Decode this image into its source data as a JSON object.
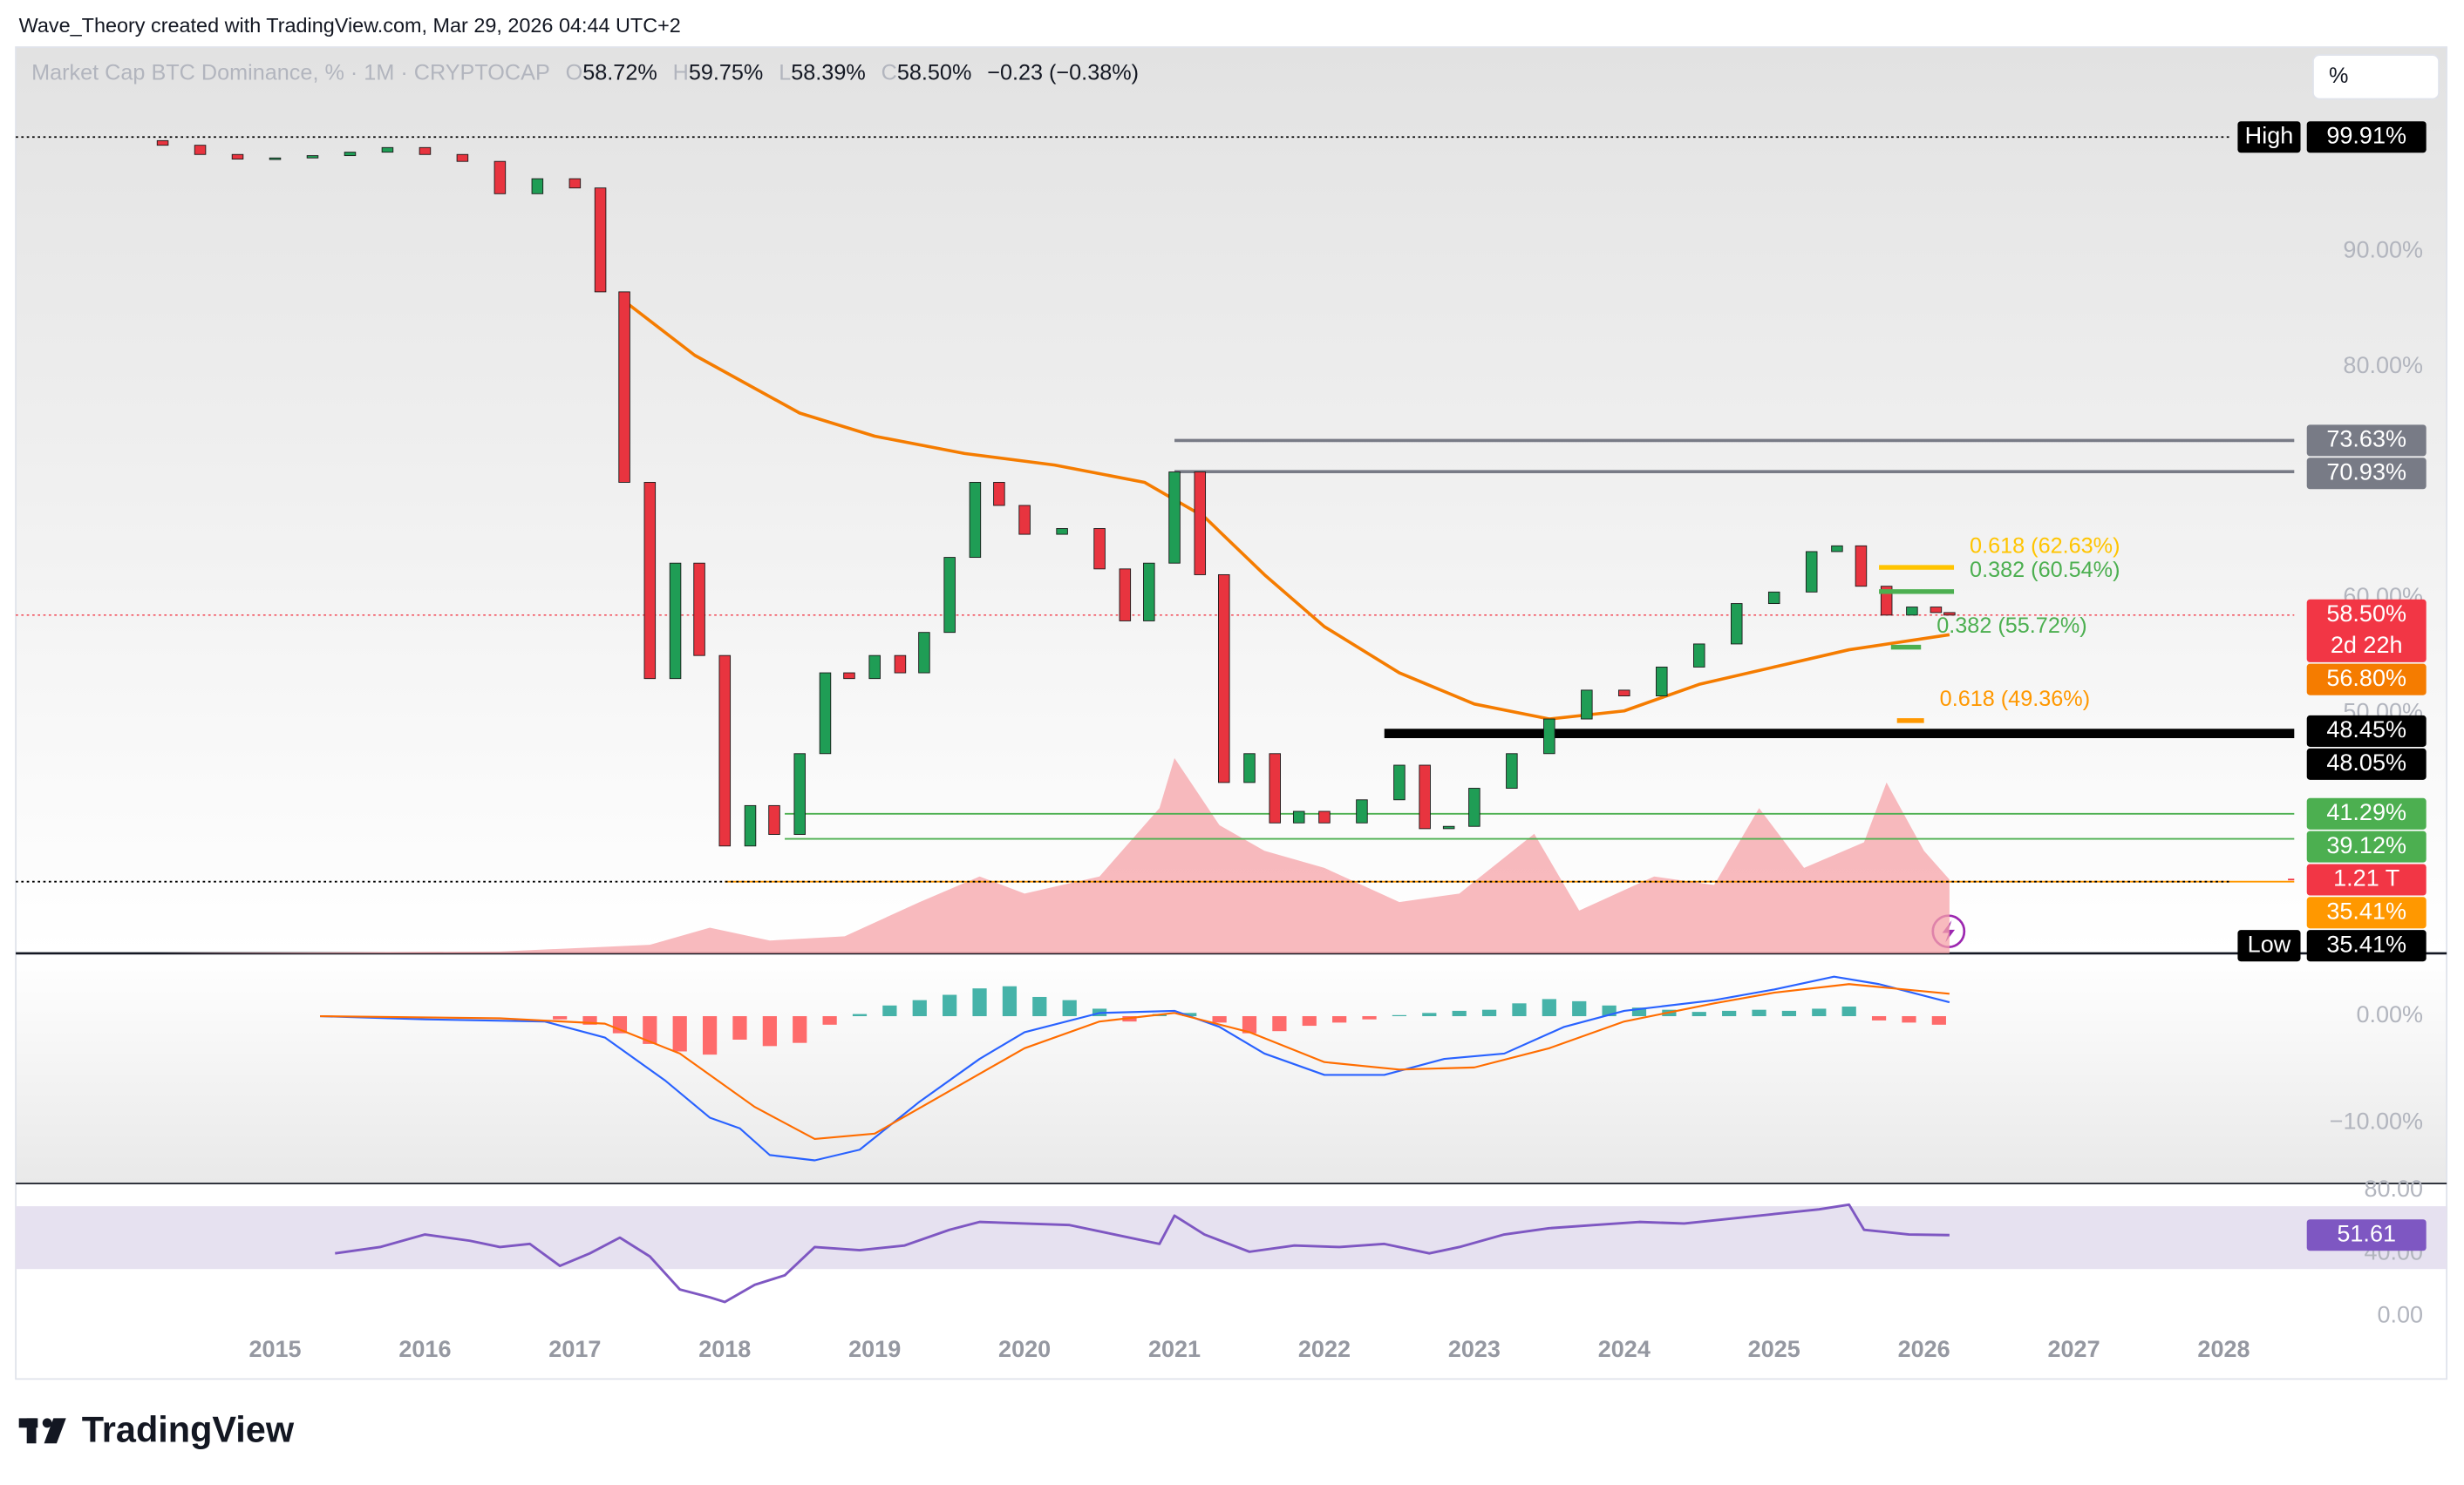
{
  "header": {
    "attribution": "Wave_Theory created with TradingView.com, Mar 29, 2026 04:44 UTC+2",
    "symbol": "Market Cap BTC Dominance, % · 1M · CRYPTOCAP",
    "ohlc": [
      {
        "key": "O",
        "value": "58.72%"
      },
      {
        "key": "H",
        "value": "59.75%"
      },
      {
        "key": "L",
        "value": "58.39%"
      },
      {
        "key": "C",
        "value": "58.50%"
      }
    ],
    "change": "−0.23 (−0.38%)",
    "unit": "%"
  },
  "footer": {
    "logo": "TradingView"
  },
  "chart_data": [
    {
      "type": "candlestick",
      "xlim": [
        2013.27,
        2028.47
      ],
      "xticks": [
        2015,
        2016,
        2017,
        2018,
        2019,
        2020,
        2021,
        2022,
        2023,
        2024,
        2025,
        2026,
        2027,
        2028
      ],
      "ylim": [
        29.2,
        107.7
      ],
      "yticks": [
        {
          "value": 50,
          "label": "50.00%"
        },
        {
          "value": 60,
          "label": "60.00%"
        },
        {
          "value": 70,
          "label": "70.00%"
        },
        {
          "value": 80,
          "label": "80.00%"
        },
        {
          "value": 90,
          "label": "90.00%"
        }
      ],
      "up_color": "#1f9d55",
      "down_color": "#e8343f",
      "x": [
        2014.25,
        2014.5,
        2014.75,
        2015.0,
        2015.25,
        2015.5,
        2015.75,
        2016.0,
        2016.25,
        2016.5,
        2016.75,
        2017.0,
        2017.17,
        2017.33,
        2017.5,
        2017.67,
        2017.83,
        2018.0,
        2018.17,
        2018.33,
        2018.5,
        2018.67,
        2018.83,
        2019.0,
        2019.17,
        2019.33,
        2019.5,
        2019.67,
        2019.83,
        2020.0,
        2020.25,
        2020.5,
        2020.67,
        2020.83,
        2021.0,
        2021.17,
        2021.33,
        2021.5,
        2021.67,
        2021.83,
        2022.0,
        2022.25,
        2022.5,
        2022.67,
        2022.83,
        2023.0,
        2023.25,
        2023.5,
        2023.75,
        2024.0,
        2024.25,
        2024.5,
        2024.75,
        2025.0,
        2025.25,
        2025.42,
        2025.58,
        2025.75,
        2025.92,
        2026.08,
        2026.17
      ],
      "open": [
        99.6,
        99.2,
        98.4,
        98.0,
        98.1,
        98.3,
        98.6,
        99.0,
        98.4,
        97.8,
        95.0,
        96.3,
        95.5,
        86.5,
        70.0,
        53.0,
        63.0,
        55.0,
        38.5,
        42.0,
        39.5,
        46.5,
        53.5,
        53.0,
        55.0,
        53.5,
        57.0,
        63.5,
        70.0,
        68.0,
        65.5,
        66.0,
        62.5,
        58.0,
        63.0,
        70.9,
        62.0,
        44.0,
        46.5,
        40.5,
        41.5,
        40.5,
        42.5,
        45.5,
        40.0,
        40.2,
        43.5,
        46.5,
        49.5,
        52.0,
        51.5,
        54.0,
        56.0,
        59.5,
        60.5,
        64.0,
        64.5,
        61.0,
        58.5,
        59.2,
        58.72
      ],
      "high": {
        "value": 99.91,
        "label": "99.91%",
        "tag": "High",
        "color": "#000000"
      },
      "low": {
        "value": 35.41,
        "label": "35.41%",
        "tag": "Low",
        "color": "#000000"
      },
      "close": [
        99.2,
        98.4,
        98.0,
        98.1,
        98.3,
        98.6,
        99.0,
        98.4,
        97.8,
        95.0,
        96.3,
        95.5,
        86.5,
        70.0,
        53.0,
        63.0,
        55.0,
        38.5,
        42.0,
        39.5,
        46.5,
        53.5,
        53.0,
        55.0,
        53.5,
        57.0,
        63.5,
        70.0,
        68.0,
        65.5,
        66.0,
        62.5,
        58.0,
        63.0,
        70.9,
        62.0,
        44.0,
        46.5,
        40.5,
        41.5,
        40.5,
        42.5,
        45.5,
        40.0,
        40.2,
        43.5,
        46.5,
        49.5,
        52.0,
        51.5,
        54.0,
        56.0,
        59.5,
        60.5,
        64.0,
        64.5,
        61.0,
        58.5,
        59.2,
        58.72,
        58.5
      ],
      "series": [
        {
          "type": "line",
          "color": "#f57c00",
          "x": [
            2017.3,
            2017.8,
            2018.5,
            2019.0,
            2019.6,
            2020.2,
            2020.8,
            2021.2,
            2021.6,
            2022.0,
            2022.5,
            2023.0,
            2023.5,
            2024.0,
            2024.5,
            2025.0,
            2025.5,
            2026.17
          ],
          "values": [
            86,
            81,
            76,
            74,
            72.5,
            71.5,
            70,
            67,
            62,
            57.5,
            53.5,
            50.8,
            49.5,
            50.2,
            52.5,
            54,
            55.5,
            56.8
          ],
          "current": {
            "value": 56.8,
            "label": "56.80%",
            "color": "#f57c00"
          }
        }
      ],
      "volume": {
        "type": "area",
        "color": "#f5a3a8",
        "ylim": [
          0,
          14.85
        ],
        "x": [
          2014.2,
          2016.5,
          2017.5,
          2017.9,
          2018.3,
          2018.8,
          2019.3,
          2019.7,
          2020.0,
          2020.5,
          2020.9,
          2021.0,
          2021.3,
          2021.6,
          2022.0,
          2022.5,
          2022.9,
          2023.4,
          2023.7,
          2024.2,
          2024.6,
          2024.9,
          2025.2,
          2025.6,
          2025.75,
          2026.0,
          2026.17
        ],
        "values": [
          0,
          0.03,
          0.14,
          0.42,
          0.21,
          0.28,
          0.84,
          1.26,
          0.98,
          1.26,
          2.38,
          3.2,
          2.1,
          1.68,
          1.4,
          0.84,
          0.98,
          1.96,
          0.7,
          1.26,
          1.12,
          2.38,
          1.4,
          1.82,
          2.8,
          1.68,
          1.21
        ],
        "current": {
          "value": 1.21,
          "label": "1.21 T",
          "color": "#f23645"
        }
      },
      "levels": [
        {
          "value": 73.63,
          "label": "73.63%",
          "color": "#787b86",
          "from": 2021.0,
          "line_width": 2
        },
        {
          "value": 70.93,
          "label": "70.93%",
          "color": "#787b86",
          "from": 2021.0,
          "line_width": 2
        },
        {
          "value": 48.45,
          "label": "48.45%",
          "color": "#000000",
          "from": 2022.4,
          "line_width": 3
        },
        {
          "value": 48.05,
          "label": "48.05%",
          "color": "#000000",
          "from": 2022.4,
          "line_width": 3
        },
        {
          "value": 41.29,
          "label": "41.29%",
          "color": "#4caf50",
          "from": 2018.4,
          "line_width": 1
        },
        {
          "value": 39.12,
          "label": "39.12%",
          "color": "#4caf50",
          "from": 2018.4,
          "line_width": 1
        },
        {
          "value": 35.41,
          "label": "35.41%",
          "color": "#ff9800",
          "from": 2018.0,
          "line_width": 1
        }
      ],
      "fibs": [
        {
          "value": 62.63,
          "label": "0.618 (62.63%)",
          "color": "#ffc400",
          "from": 2025.7,
          "to": 2026.2
        },
        {
          "value": 60.54,
          "label": "0.382 (60.54%)",
          "color": "#4caf50",
          "from": 2025.7,
          "to": 2026.2
        },
        {
          "value": 55.72,
          "label": "0.382 (55.72%)",
          "color": "#4caf50",
          "from": 2025.78,
          "to": 2025.98
        },
        {
          "value": 49.36,
          "label": "0.618 (49.36%)",
          "color": "#ff9800",
          "from": 2025.82,
          "to": 2026.0
        }
      ],
      "last": {
        "value": 58.5,
        "label": "58.50%",
        "countdown": "2d 22h",
        "color": "#f23645"
      }
    },
    {
      "type": "macd",
      "xlim": [
        2013.27,
        2028.47
      ],
      "ylim": [
        -15.44,
        5.44
      ],
      "yticks": [
        {
          "value": -10,
          "label": "−10.00%"
        },
        {
          "value": 0,
          "label": "0.00%"
        }
      ],
      "series": [
        {
          "type": "histogram",
          "colors": {
            "up": "#26a69a",
            "down": "#ff5252"
          },
          "x": [
            2016.9,
            2017.1,
            2017.3,
            2017.5,
            2017.7,
            2017.9,
            2018.1,
            2018.3,
            2018.5,
            2018.7,
            2018.9,
            2019.1,
            2019.3,
            2019.5,
            2019.7,
            2019.9,
            2020.1,
            2020.3,
            2020.5,
            2020.7,
            2020.9,
            2021.1,
            2021.3,
            2021.5,
            2021.7,
            2021.9,
            2022.1,
            2022.3,
            2022.5,
            2022.7,
            2022.9,
            2023.1,
            2023.3,
            2023.5,
            2023.7,
            2023.9,
            2024.1,
            2024.3,
            2024.5,
            2024.7,
            2024.9,
            2025.1,
            2025.3,
            2025.5,
            2025.7,
            2025.9,
            2026.1
          ],
          "values": [
            -0.3,
            -0.8,
            -1.6,
            -2.6,
            -3.3,
            -3.6,
            -2.2,
            -2.8,
            -2.5,
            -0.8,
            0.2,
            1.0,
            1.5,
            2.0,
            2.6,
            2.8,
            1.8,
            1.5,
            0.7,
            -0.5,
            0.2,
            0.3,
            -0.6,
            -1.6,
            -1.4,
            -0.9,
            -0.6,
            -0.3,
            0.1,
            0.3,
            0.5,
            0.6,
            1.2,
            1.6,
            1.4,
            1.0,
            0.8,
            0.6,
            0.4,
            0.5,
            0.6,
            0.5,
            0.7,
            0.9,
            -0.4,
            -0.6,
            -0.8
          ]
        },
        {
          "type": "line",
          "color": "#2962ff",
          "x": [
            2015.3,
            2016.0,
            2016.8,
            2017.2,
            2017.6,
            2017.9,
            2018.1,
            2018.3,
            2018.6,
            2018.9,
            2019.3,
            2019.7,
            2020.0,
            2020.5,
            2021.0,
            2021.3,
            2021.6,
            2022.0,
            2022.4,
            2022.8,
            2023.2,
            2023.6,
            2024.0,
            2024.6,
            2025.0,
            2025.4,
            2025.7,
            2026.17
          ],
          "values": [
            0,
            -0.3,
            -0.5,
            -2,
            -6,
            -9.5,
            -10.5,
            -13,
            -13.5,
            -12.5,
            -8,
            -4,
            -1.5,
            0.3,
            0.5,
            -1,
            -3.5,
            -5.5,
            -5.5,
            -4,
            -3.5,
            -1,
            0.5,
            1.5,
            2.5,
            3.7,
            3,
            1.3
          ]
        },
        {
          "type": "line",
          "color": "#ff6d00",
          "x": [
            2015.3,
            2016.5,
            2017.2,
            2017.7,
            2018.2,
            2018.6,
            2019.0,
            2019.5,
            2020.0,
            2020.5,
            2021.0,
            2021.5,
            2022.0,
            2022.5,
            2023.0,
            2023.5,
            2024.0,
            2024.6,
            2025.0,
            2025.5,
            2026.17
          ],
          "values": [
            0,
            -0.2,
            -0.7,
            -3.5,
            -8.5,
            -11.5,
            -11,
            -7,
            -3,
            -0.5,
            0.3,
            -1.5,
            -4.3,
            -5,
            -4.8,
            -3,
            -0.5,
            1.2,
            2.2,
            3,
            2.1
          ]
        }
      ]
    },
    {
      "type": "rsi",
      "xlim": [
        2013.27,
        2028.47
      ],
      "ylim": [
        -7,
        83
      ],
      "yticks": [
        {
          "value": 0,
          "label": "0.00"
        },
        {
          "value": 40,
          "label": "40.00"
        },
        {
          "value": 80,
          "label": "80.00"
        }
      ],
      "band": [
        30,
        70
      ],
      "band_color": "#e6e1f0",
      "series": [
        {
          "type": "line",
          "color": "#7e57c2",
          "x": [
            2015.4,
            2015.7,
            2016.0,
            2016.3,
            2016.5,
            2016.7,
            2016.9,
            2017.1,
            2017.3,
            2017.5,
            2017.7,
            2017.9,
            2018.0,
            2018.2,
            2018.4,
            2018.6,
            2018.9,
            2019.2,
            2019.5,
            2019.7,
            2020.0,
            2020.3,
            2020.6,
            2020.9,
            2021.0,
            2021.2,
            2021.5,
            2021.8,
            2022.1,
            2022.4,
            2022.7,
            2022.9,
            2023.2,
            2023.5,
            2023.8,
            2024.1,
            2024.4,
            2024.7,
            2025.0,
            2025.3,
            2025.5,
            2025.6,
            2025.9,
            2026.17
          ],
          "values": [
            40,
            44,
            52,
            48,
            44,
            46,
            32,
            40,
            50,
            38,
            17,
            12,
            9,
            20,
            26,
            44,
            42,
            45,
            55,
            60,
            59,
            58,
            52,
            46,
            64,
            52,
            41,
            45,
            44,
            46,
            40,
            44,
            52,
            56,
            58,
            60,
            59,
            62,
            65,
            68,
            71,
            55,
            52,
            51.61
          ],
          "current": {
            "value": 51.61,
            "label": "51.61",
            "color": "#7e57c2"
          }
        }
      ]
    }
  ]
}
